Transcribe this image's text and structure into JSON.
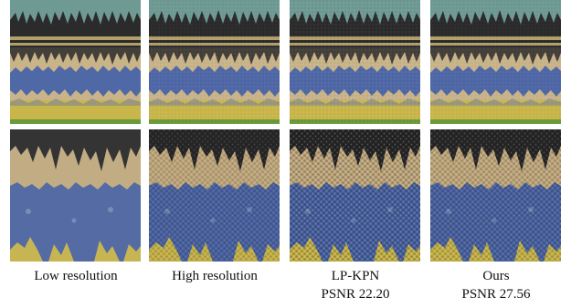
{
  "figure": {
    "columns": [
      {
        "id": "low",
        "caption_lines": [
          "Low resolution"
        ]
      },
      {
        "id": "high",
        "caption_lines": [
          "High resolution"
        ]
      },
      {
        "id": "lpkpn",
        "caption_lines": [
          "LP-KPN",
          "PSNR 22.20"
        ]
      },
      {
        "id": "ours",
        "caption_lines": [
          "Ours",
          "PSNR 27.56"
        ]
      }
    ],
    "rows": [
      "full-texture-view",
      "zoomed-detail-view"
    ],
    "colors": {
      "teal": "#6f9a94",
      "dark": "#2b2b2b",
      "beige": "#c9b48a",
      "blue": "#4f68a6",
      "yellow": "#c9b64b",
      "green": "#6a9a3a"
    },
    "icons": [
      "none"
    ]
  }
}
